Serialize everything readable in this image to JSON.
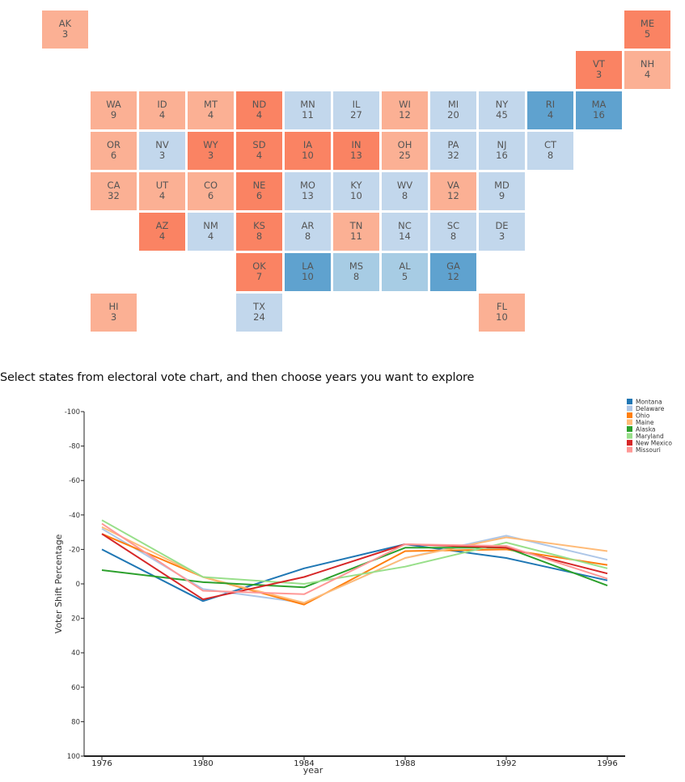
{
  "colors": {
    "dem_strong": "#5fa2cf",
    "dem_light": "#a7cce4",
    "dem_lean": "#c2d7ec",
    "rep_lean": "#fbb094",
    "rep_strong": "#fa8363"
  },
  "tile_map": {
    "tiles": [
      {
        "state": "AK",
        "ev": "3",
        "row": 0,
        "col": 0,
        "lean": "rep_lean"
      },
      {
        "state": "ME",
        "ev": "5",
        "row": 0,
        "col": 12,
        "lean": "rep_strong"
      },
      {
        "state": "VT",
        "ev": "3",
        "row": 1,
        "col": 11,
        "lean": "rep_strong"
      },
      {
        "state": "NH",
        "ev": "4",
        "row": 1,
        "col": 12,
        "lean": "rep_lean"
      },
      {
        "state": "WA",
        "ev": "9",
        "row": 2,
        "col": 1,
        "lean": "rep_lean"
      },
      {
        "state": "ID",
        "ev": "4",
        "row": 2,
        "col": 2,
        "lean": "rep_lean"
      },
      {
        "state": "MT",
        "ev": "4",
        "row": 2,
        "col": 3,
        "lean": "rep_lean"
      },
      {
        "state": "ND",
        "ev": "4",
        "row": 2,
        "col": 4,
        "lean": "rep_strong"
      },
      {
        "state": "MN",
        "ev": "11",
        "row": 2,
        "col": 5,
        "lean": "dem_lean"
      },
      {
        "state": "IL",
        "ev": "27",
        "row": 2,
        "col": 6,
        "lean": "dem_lean"
      },
      {
        "state": "WI",
        "ev": "12",
        "row": 2,
        "col": 7,
        "lean": "rep_lean"
      },
      {
        "state": "MI",
        "ev": "20",
        "row": 2,
        "col": 8,
        "lean": "dem_lean"
      },
      {
        "state": "NY",
        "ev": "45",
        "row": 2,
        "col": 9,
        "lean": "dem_lean"
      },
      {
        "state": "RI",
        "ev": "4",
        "row": 2,
        "col": 10,
        "lean": "dem_strong"
      },
      {
        "state": "MA",
        "ev": "16",
        "row": 2,
        "col": 11,
        "lean": "dem_strong"
      },
      {
        "state": "OR",
        "ev": "6",
        "row": 3,
        "col": 1,
        "lean": "rep_lean"
      },
      {
        "state": "NV",
        "ev": "3",
        "row": 3,
        "col": 2,
        "lean": "dem_lean"
      },
      {
        "state": "WY",
        "ev": "3",
        "row": 3,
        "col": 3,
        "lean": "rep_strong"
      },
      {
        "state": "SD",
        "ev": "4",
        "row": 3,
        "col": 4,
        "lean": "rep_strong"
      },
      {
        "state": "IA",
        "ev": "10",
        "row": 3,
        "col": 5,
        "lean": "rep_strong"
      },
      {
        "state": "IN",
        "ev": "13",
        "row": 3,
        "col": 6,
        "lean": "rep_strong"
      },
      {
        "state": "OH",
        "ev": "25",
        "row": 3,
        "col": 7,
        "lean": "rep_lean"
      },
      {
        "state": "PA",
        "ev": "32",
        "row": 3,
        "col": 8,
        "lean": "dem_lean"
      },
      {
        "state": "NJ",
        "ev": "16",
        "row": 3,
        "col": 9,
        "lean": "dem_lean"
      },
      {
        "state": "CT",
        "ev": "8",
        "row": 3,
        "col": 10,
        "lean": "dem_lean"
      },
      {
        "state": "CA",
        "ev": "32",
        "row": 4,
        "col": 1,
        "lean": "rep_lean"
      },
      {
        "state": "UT",
        "ev": "4",
        "row": 4,
        "col": 2,
        "lean": "rep_lean"
      },
      {
        "state": "CO",
        "ev": "6",
        "row": 4,
        "col": 3,
        "lean": "rep_lean"
      },
      {
        "state": "NE",
        "ev": "6",
        "row": 4,
        "col": 4,
        "lean": "rep_strong"
      },
      {
        "state": "MO",
        "ev": "13",
        "row": 4,
        "col": 5,
        "lean": "dem_lean"
      },
      {
        "state": "KY",
        "ev": "10",
        "row": 4,
        "col": 6,
        "lean": "dem_lean"
      },
      {
        "state": "WV",
        "ev": "8",
        "row": 4,
        "col": 7,
        "lean": "dem_lean"
      },
      {
        "state": "VA",
        "ev": "12",
        "row": 4,
        "col": 8,
        "lean": "rep_lean"
      },
      {
        "state": "MD",
        "ev": "9",
        "row": 4,
        "col": 9,
        "lean": "dem_lean"
      },
      {
        "state": "AZ",
        "ev": "4",
        "row": 5,
        "col": 2,
        "lean": "rep_strong"
      },
      {
        "state": "NM",
        "ev": "4",
        "row": 5,
        "col": 3,
        "lean": "dem_lean"
      },
      {
        "state": "KS",
        "ev": "8",
        "row": 5,
        "col": 4,
        "lean": "rep_strong"
      },
      {
        "state": "AR",
        "ev": "8",
        "row": 5,
        "col": 5,
        "lean": "dem_lean"
      },
      {
        "state": "TN",
        "ev": "11",
        "row": 5,
        "col": 6,
        "lean": "rep_lean"
      },
      {
        "state": "NC",
        "ev": "14",
        "row": 5,
        "col": 7,
        "lean": "dem_lean"
      },
      {
        "state": "SC",
        "ev": "8",
        "row": 5,
        "col": 8,
        "lean": "dem_lean"
      },
      {
        "state": "DE",
        "ev": "3",
        "row": 5,
        "col": 9,
        "lean": "dem_lean"
      },
      {
        "state": "OK",
        "ev": "7",
        "row": 6,
        "col": 4,
        "lean": "rep_strong"
      },
      {
        "state": "LA",
        "ev": "10",
        "row": 6,
        "col": 5,
        "lean": "dem_strong"
      },
      {
        "state": "MS",
        "ev": "8",
        "row": 6,
        "col": 6,
        "lean": "dem_light"
      },
      {
        "state": "AL",
        "ev": "5",
        "row": 6,
        "col": 7,
        "lean": "dem_light"
      },
      {
        "state": "GA",
        "ev": "12",
        "row": 6,
        "col": 8,
        "lean": "dem_strong"
      },
      {
        "state": "HI",
        "ev": "3",
        "row": 7,
        "col": 1,
        "lean": "rep_lean"
      },
      {
        "state": "TX",
        "ev": "24",
        "row": 7,
        "col": 4,
        "lean": "dem_lean"
      },
      {
        "state": "FL",
        "ev": "10",
        "row": 7,
        "col": 9,
        "lean": "rep_lean"
      }
    ]
  },
  "prompt": "Select states from electoral vote chart, and then choose years you want to explore",
  "chart_data": {
    "type": "line",
    "x": [
      1976,
      1980,
      1984,
      1988,
      1992,
      1996
    ],
    "xticks": [
      "1976",
      "1980",
      "1984",
      "1988",
      "1992",
      "1996"
    ],
    "xlabel": "year",
    "ylabel": "Voter Shift Percentage",
    "ylim": [
      -100,
      100
    ],
    "y_inverted": true,
    "yticks": [
      "-100",
      "-80",
      "-60",
      "-40",
      "-20",
      "0",
      "20",
      "40",
      "60",
      "80",
      "100"
    ],
    "grid": false,
    "legend": "top-right",
    "series": [
      {
        "name": "Montana",
        "color": "#1f77b4",
        "values": [
          -20,
          10,
          -9,
          -23,
          -15,
          -2
        ]
      },
      {
        "name": "Delaware",
        "color": "#aec7e8",
        "values": [
          -32,
          3,
          11,
          -15,
          -28,
          -14
        ]
      },
      {
        "name": "Ohio",
        "color": "#ff7f0e",
        "values": [
          -29,
          -4,
          12,
          -19,
          -20,
          -11
        ]
      },
      {
        "name": "Maine",
        "color": "#ffbb78",
        "values": [
          -33,
          -4,
          11,
          -15,
          -27,
          -19
        ]
      },
      {
        "name": "Alaska",
        "color": "#2ca02c",
        "values": [
          -8,
          -1,
          2,
          -21,
          -21,
          1
        ]
      },
      {
        "name": "Maryland",
        "color": "#98df8a",
        "values": [
          -37,
          -4,
          0,
          -10,
          -24,
          -9
        ]
      },
      {
        "name": "New Mexico",
        "color": "#d62728",
        "values": [
          -29,
          9,
          -4,
          -23,
          -21,
          -6
        ]
      },
      {
        "name": "Missouri",
        "color": "#ff9896",
        "values": [
          -35,
          4,
          6,
          -23,
          -22,
          -3
        ]
      }
    ]
  }
}
